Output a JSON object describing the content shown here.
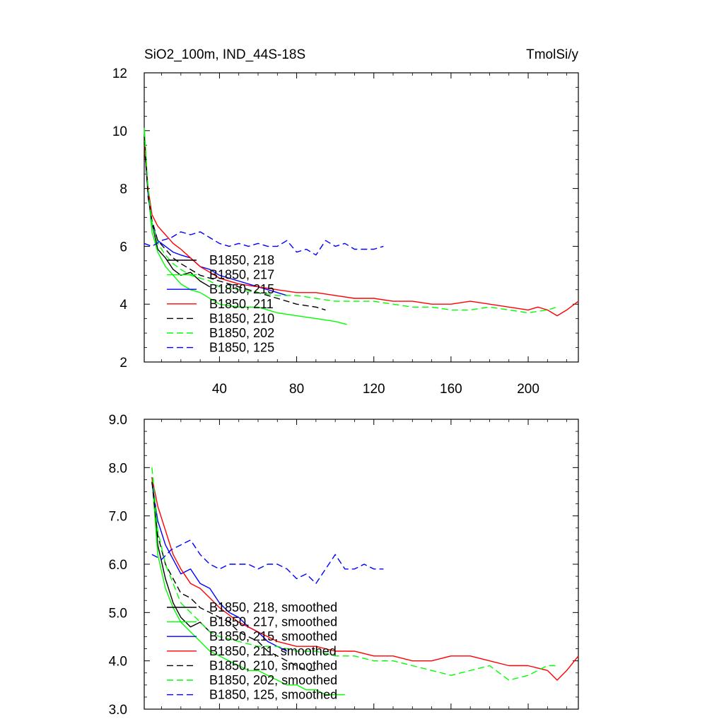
{
  "chart_data": [
    {
      "type": "line",
      "title": "SiO2_100m, IND_44S-18S",
      "units_label": "TmolSi/y",
      "xlabel": "",
      "ylabel": "",
      "xlim": [
        1,
        226
      ],
      "ylim": [
        2,
        12
      ],
      "y_ticks": [
        2,
        4,
        6,
        8,
        10,
        12
      ],
      "y_tick_labels": [
        "2",
        "4",
        "6",
        "8",
        "10",
        "12"
      ],
      "x_ticks": [
        40,
        80,
        120,
        160,
        200
      ],
      "x_tick_labels": [
        "40",
        "80",
        "120",
        "160",
        "200"
      ],
      "legend_position": "lower-left",
      "grid": false,
      "series": [
        {
          "name": "B1850, 218",
          "color": "#000000",
          "dash": "solid",
          "x": [
            1,
            3,
            5,
            8,
            12,
            16,
            20,
            25,
            30,
            35
          ],
          "values": [
            9.6,
            7.9,
            6.8,
            5.9,
            5.6,
            5.2,
            5.0,
            5.1,
            4.8,
            4.6
          ]
        },
        {
          "name": "B1850, 217",
          "color": "#00ff00",
          "dash": "solid",
          "x": [
            1,
            3,
            5,
            8,
            12,
            16,
            20,
            25,
            30,
            35,
            40,
            50,
            60,
            70,
            80,
            90,
            100,
            106
          ],
          "values": [
            10.1,
            7.9,
            6.5,
            5.8,
            5.3,
            5.0,
            4.7,
            4.5,
            4.4,
            4.2,
            4.0,
            3.9,
            3.9,
            3.7,
            3.6,
            3.5,
            3.4,
            3.3
          ]
        },
        {
          "name": "B1850, 215",
          "color": "#0000ff",
          "dash": "solid",
          "x": [
            1,
            3,
            5,
            8,
            12,
            16,
            20,
            25,
            30,
            35,
            40,
            50,
            60,
            70,
            75
          ],
          "values": [
            9.5,
            7.8,
            6.8,
            6.2,
            6.0,
            5.8,
            5.7,
            5.6,
            5.3,
            5.2,
            5.0,
            4.8,
            4.6,
            4.4,
            4.3
          ]
        },
        {
          "name": "B1850, 211",
          "color": "#ff0000",
          "dash": "solid",
          "x": [
            1,
            3,
            5,
            8,
            12,
            16,
            20,
            25,
            30,
            35,
            40,
            50,
            60,
            70,
            80,
            90,
            100,
            110,
            120,
            130,
            140,
            150,
            160,
            170,
            180,
            190,
            200,
            205,
            210,
            215,
            220,
            226
          ],
          "values": [
            9.5,
            8.0,
            7.1,
            6.7,
            6.4,
            6.1,
            5.9,
            5.6,
            5.3,
            5.1,
            4.9,
            4.7,
            4.6,
            4.5,
            4.4,
            4.4,
            4.3,
            4.2,
            4.2,
            4.1,
            4.1,
            4.0,
            4.0,
            4.1,
            4.0,
            3.9,
            3.8,
            3.9,
            3.8,
            3.6,
            3.8,
            4.1
          ]
        },
        {
          "name": "B1850, 210",
          "color": "#000000",
          "dash": "dash",
          "x": [
            1,
            3,
            5,
            8,
            12,
            16,
            20,
            25,
            30,
            35,
            40,
            50,
            60,
            70,
            80,
            90,
            95
          ],
          "values": [
            9.8,
            7.7,
            6.9,
            6.2,
            5.9,
            5.6,
            5.4,
            5.2,
            5.0,
            4.9,
            4.8,
            4.6,
            4.4,
            4.2,
            4.0,
            3.9,
            3.8
          ]
        },
        {
          "name": "B1850, 202",
          "color": "#00ff00",
          "dash": "dash",
          "x": [
            1,
            3,
            5,
            8,
            12,
            16,
            20,
            25,
            30,
            35,
            40,
            50,
            60,
            70,
            80,
            90,
            100,
            110,
            120,
            130,
            140,
            150,
            160,
            170,
            180,
            190,
            200,
            210,
            215
          ],
          "values": [
            10.0,
            8.0,
            6.8,
            6.1,
            5.7,
            5.4,
            5.2,
            5.0,
            4.9,
            4.8,
            4.6,
            4.5,
            4.4,
            4.3,
            4.3,
            4.2,
            4.1,
            4.1,
            4.1,
            4.0,
            3.9,
            3.9,
            3.8,
            3.8,
            3.9,
            3.8,
            3.7,
            3.8,
            3.9
          ]
        },
        {
          "name": "B1850, 125",
          "color": "#0000ff",
          "dash": "dash",
          "x": [
            1,
            5,
            10,
            15,
            20,
            25,
            30,
            35,
            40,
            45,
            50,
            55,
            60,
            65,
            70,
            75,
            80,
            85,
            90,
            95,
            100,
            105,
            110,
            115,
            120,
            125
          ],
          "values": [
            6.1,
            6.0,
            6.2,
            6.3,
            6.5,
            6.4,
            6.5,
            6.3,
            6.1,
            6.0,
            6.1,
            6.0,
            6.1,
            6.0,
            6.0,
            6.2,
            5.8,
            5.9,
            5.7,
            6.2,
            6.0,
            6.1,
            5.9,
            5.9,
            5.9,
            6.0
          ]
        }
      ]
    },
    {
      "type": "line",
      "title": "",
      "xlabel": "",
      "ylabel": "",
      "xlim": [
        1,
        226
      ],
      "ylim": [
        3.0,
        9.0
      ],
      "y_ticks": [
        3.0,
        4.0,
        5.0,
        6.0,
        7.0,
        8.0,
        9.0
      ],
      "y_tick_labels": [
        "3.0",
        "4.0",
        "5.0",
        "6.0",
        "7.0",
        "8.0",
        "9.0"
      ],
      "x_ticks": [
        40,
        80,
        120,
        160,
        200
      ],
      "legend_position": "lower-left",
      "grid": false,
      "series": [
        {
          "name": "B1850, 218, smoothed",
          "color": "#000000",
          "dash": "solid",
          "x": [
            5,
            8,
            12,
            16,
            20,
            25,
            30,
            35
          ],
          "values": [
            7.8,
            6.4,
            5.7,
            5.2,
            4.9,
            4.7,
            4.8,
            4.6
          ]
        },
        {
          "name": "B1850, 217, smoothed",
          "color": "#00ff00",
          "dash": "solid",
          "x": [
            5,
            8,
            12,
            16,
            20,
            25,
            30,
            35,
            40,
            45,
            50,
            55,
            60,
            65,
            70,
            75,
            80,
            85,
            90,
            95,
            100,
            105
          ],
          "values": [
            7.8,
            6.2,
            5.5,
            5.1,
            4.8,
            4.6,
            4.4,
            4.2,
            4.1,
            4.0,
            3.9,
            3.8,
            3.8,
            3.7,
            3.6,
            3.5,
            3.5,
            3.4,
            3.4,
            3.3,
            3.3,
            3.3
          ]
        },
        {
          "name": "B1850, 215, smoothed",
          "color": "#0000ff",
          "dash": "solid",
          "x": [
            5,
            8,
            12,
            16,
            20,
            25,
            30,
            35,
            40,
            45,
            50,
            55,
            60,
            65,
            70,
            75
          ],
          "values": [
            7.7,
            6.9,
            6.4,
            6.1,
            5.8,
            5.9,
            5.6,
            5.5,
            5.2,
            5.0,
            4.9,
            4.7,
            4.6,
            4.4,
            4.3,
            4.2
          ]
        },
        {
          "name": "B1850, 211, smoothed",
          "color": "#ff0000",
          "dash": "solid",
          "x": [
            5,
            8,
            12,
            16,
            20,
            25,
            30,
            35,
            40,
            50,
            60,
            70,
            80,
            90,
            100,
            110,
            120,
            130,
            140,
            150,
            160,
            170,
            180,
            190,
            200,
            210,
            215,
            220,
            226
          ],
          "values": [
            7.8,
            7.2,
            6.7,
            6.2,
            5.9,
            5.6,
            5.5,
            5.3,
            5.1,
            4.8,
            4.6,
            4.4,
            4.3,
            4.3,
            4.2,
            4.2,
            4.1,
            4.1,
            4.0,
            4.0,
            4.1,
            4.1,
            4.0,
            3.9,
            3.9,
            3.8,
            3.6,
            3.8,
            4.1
          ]
        },
        {
          "name": "B1850, 210, smoothed",
          "color": "#000000",
          "dash": "dash",
          "x": [
            5,
            8,
            12,
            16,
            20,
            25,
            30,
            35,
            40,
            45,
            50,
            55,
            60,
            65,
            70,
            75,
            80,
            85,
            90
          ],
          "values": [
            7.7,
            6.6,
            6.0,
            5.7,
            5.4,
            5.3,
            5.1,
            5.0,
            4.9,
            4.8,
            4.6,
            4.5,
            4.4,
            4.2,
            4.1,
            4.0,
            3.9,
            3.8,
            3.8
          ]
        },
        {
          "name": "B1850, 202, smoothed",
          "color": "#00ff00",
          "dash": "dash",
          "x": [
            5,
            8,
            12,
            16,
            20,
            25,
            30,
            35,
            40,
            50,
            60,
            70,
            80,
            90,
            100,
            110,
            120,
            130,
            140,
            150,
            160,
            170,
            180,
            190,
            200,
            205,
            210,
            215
          ],
          "values": [
            8.0,
            6.7,
            6.0,
            5.6,
            5.2,
            5.0,
            4.8,
            4.6,
            4.5,
            4.4,
            4.3,
            4.3,
            4.2,
            4.2,
            4.1,
            4.1,
            4.0,
            4.0,
            3.9,
            3.8,
            3.7,
            3.8,
            3.9,
            3.6,
            3.7,
            3.8,
            3.9,
            3.9
          ]
        },
        {
          "name": "B1850, 125, smoothed",
          "color": "#0000ff",
          "dash": "dash",
          "x": [
            5,
            10,
            15,
            20,
            25,
            30,
            35,
            40,
            45,
            50,
            55,
            60,
            65,
            70,
            75,
            80,
            85,
            90,
            95,
            100,
            105,
            110,
            115,
            120,
            125
          ],
          "values": [
            6.2,
            6.1,
            6.3,
            6.4,
            6.5,
            6.2,
            6.0,
            5.9,
            6.0,
            6.0,
            6.0,
            5.9,
            6.0,
            6.0,
            5.9,
            5.7,
            5.8,
            5.6,
            5.9,
            6.2,
            5.9,
            5.9,
            6.0,
            5.9,
            5.9
          ]
        }
      ]
    }
  ]
}
